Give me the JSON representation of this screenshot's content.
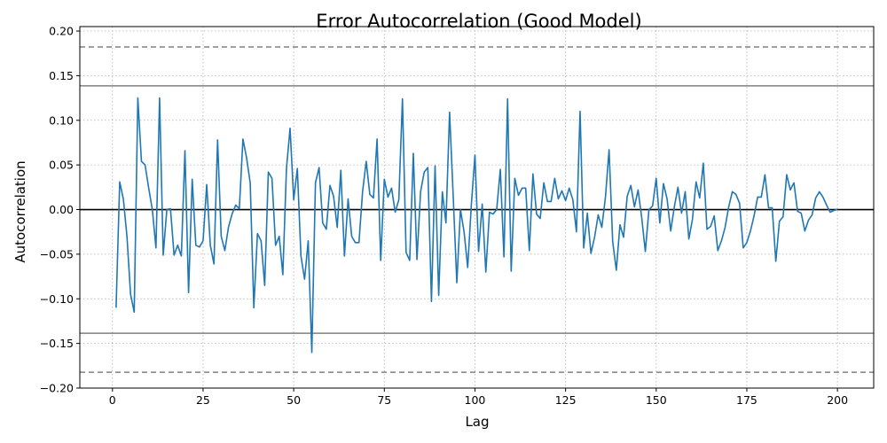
{
  "chart_data": {
    "type": "line",
    "title": "Error Autocorrelation (Good Model)",
    "xlabel": "Lag",
    "ylabel": "Autocorrelation",
    "xlim": [
      -9,
      210
    ],
    "ylim": [
      -0.2,
      0.205
    ],
    "grid": true,
    "x_ticks": [
      0,
      25,
      50,
      75,
      100,
      125,
      150,
      175,
      200
    ],
    "x_tick_labels": [
      "0",
      "25",
      "50",
      "75",
      "100",
      "125",
      "150",
      "175",
      "200"
    ],
    "y_ticks": [
      -0.2,
      -0.15,
      -0.1,
      -0.05,
      0.0,
      0.05,
      0.1,
      0.15,
      0.2
    ],
    "y_tick_labels": [
      "−0.20",
      "−0.15",
      "−0.10",
      "−0.05",
      "0.00",
      "0.05",
      "0.10",
      "0.15",
      "0.20"
    ],
    "series": [
      {
        "color": "#1f77b4",
        "x": [
          1,
          2,
          3,
          4,
          5,
          6,
          7,
          8,
          9,
          10,
          11,
          12,
          13,
          14,
          15,
          16,
          17,
          18,
          19,
          20,
          21,
          22,
          23,
          24,
          25,
          26,
          27,
          28,
          29,
          30,
          31,
          32,
          33,
          34,
          35,
          36,
          37,
          38,
          39,
          40,
          41,
          42,
          43,
          44,
          45,
          46,
          47,
          48,
          49,
          50,
          51,
          52,
          53,
          54,
          55,
          56,
          57,
          58,
          59,
          60,
          61,
          62,
          63,
          64,
          65,
          66,
          67,
          68,
          69,
          70,
          71,
          72,
          73,
          74,
          75,
          76,
          77,
          78,
          79,
          80,
          81,
          82,
          83,
          84,
          85,
          86,
          87,
          88,
          89,
          90,
          91,
          92,
          93,
          94,
          95,
          96,
          97,
          98,
          99,
          100,
          101,
          102,
          103,
          104,
          105,
          106,
          107,
          108,
          109,
          110,
          111,
          112,
          113,
          114,
          115,
          116,
          117,
          118,
          119,
          120,
          121,
          122,
          123,
          124,
          125,
          126,
          127,
          128,
          129,
          130,
          131,
          132,
          133,
          134,
          135,
          136,
          137,
          138,
          139,
          140,
          141,
          142,
          143,
          144,
          145,
          146,
          147,
          148,
          149,
          150,
          151,
          152,
          153,
          154,
          155,
          156,
          157,
          158,
          159,
          160,
          161,
          162,
          163,
          164,
          165,
          166,
          167,
          168,
          169,
          170,
          171,
          172,
          173,
          174,
          175,
          176,
          177,
          178,
          179,
          180,
          181,
          182,
          183,
          184,
          185,
          186,
          187,
          188,
          189,
          190,
          191,
          192,
          193,
          194,
          195,
          196,
          197,
          198,
          199,
          200
        ],
        "y": [
          -0.11,
          0.031,
          0.012,
          -0.03,
          -0.095,
          -0.115,
          0.125,
          0.054,
          0.05,
          0.024,
          0.0,
          -0.043,
          0.125,
          -0.051,
          0.0,
          0.001,
          -0.051,
          -0.04,
          -0.052,
          0.066,
          -0.093,
          0.034,
          -0.04,
          -0.042,
          -0.035,
          0.028,
          -0.04,
          -0.061,
          0.078,
          -0.03,
          -0.046,
          -0.02,
          -0.005,
          0.005,
          0.001,
          0.079,
          0.058,
          0.03,
          -0.11,
          -0.027,
          -0.035,
          -0.085,
          0.042,
          0.035,
          -0.04,
          -0.03,
          -0.073,
          0.046,
          0.091,
          0.011,
          0.046,
          -0.052,
          -0.078,
          -0.035,
          -0.16,
          0.03,
          0.047,
          -0.015,
          -0.022,
          0.027,
          0.015,
          -0.02,
          0.044,
          -0.052,
          0.012,
          -0.03,
          -0.037,
          -0.037,
          0.02,
          0.054,
          0.017,
          0.013,
          0.079,
          -0.057,
          0.034,
          0.014,
          0.024,
          -0.003,
          0.011,
          0.124,
          -0.048,
          -0.057,
          0.063,
          -0.056,
          0.02,
          0.042,
          0.047,
          -0.103,
          0.049,
          -0.096,
          0.02,
          -0.015,
          0.109,
          0.015,
          -0.082,
          0.0,
          -0.025,
          -0.065,
          0.005,
          0.061,
          -0.047,
          0.006,
          -0.07,
          -0.003,
          -0.005,
          0.0,
          0.045,
          -0.053,
          0.124,
          -0.069,
          0.035,
          0.016,
          0.024,
          0.024,
          -0.046,
          0.04,
          -0.005,
          -0.01,
          0.03,
          0.009,
          0.009,
          0.035,
          0.012,
          0.021,
          0.01,
          0.024,
          0.011,
          -0.025,
          0.11,
          -0.043,
          -0.004,
          -0.049,
          -0.031,
          -0.006,
          -0.02,
          0.014,
          0.067,
          -0.036,
          -0.068,
          -0.017,
          -0.031,
          0.015,
          0.027,
          0.003,
          0.022,
          -0.009,
          -0.047,
          0.0,
          0.004,
          0.035,
          -0.015,
          0.029,
          0.012,
          -0.024,
          0.003,
          0.025,
          -0.004,
          0.02,
          -0.033,
          -0.011,
          0.031,
          0.013,
          0.052,
          -0.022,
          -0.019,
          -0.007,
          -0.046,
          -0.035,
          -0.02,
          0.003,
          0.02,
          0.017,
          0.007,
          -0.043,
          -0.037,
          -0.024,
          -0.007,
          0.014,
          0.014,
          0.039,
          0.002,
          0.002,
          -0.058,
          -0.013,
          -0.008,
          0.039,
          0.022,
          0.03,
          -0.002,
          -0.004,
          -0.024,
          -0.012,
          -0.006,
          0.013,
          0.02,
          0.014,
          0.005,
          -0.003,
          -0.001,
          0.0
        ]
      }
    ],
    "reference_lines": [
      {
        "y": 0.0,
        "style": "solid",
        "color": "#000000"
      },
      {
        "y": 0.1386,
        "style": "solid",
        "color": "#808080"
      },
      {
        "y": -0.1386,
        "style": "solid",
        "color": "#808080"
      },
      {
        "y": 0.1822,
        "style": "dashed",
        "color": "#808080"
      },
      {
        "y": -0.1822,
        "style": "dashed",
        "color": "#808080"
      }
    ]
  }
}
